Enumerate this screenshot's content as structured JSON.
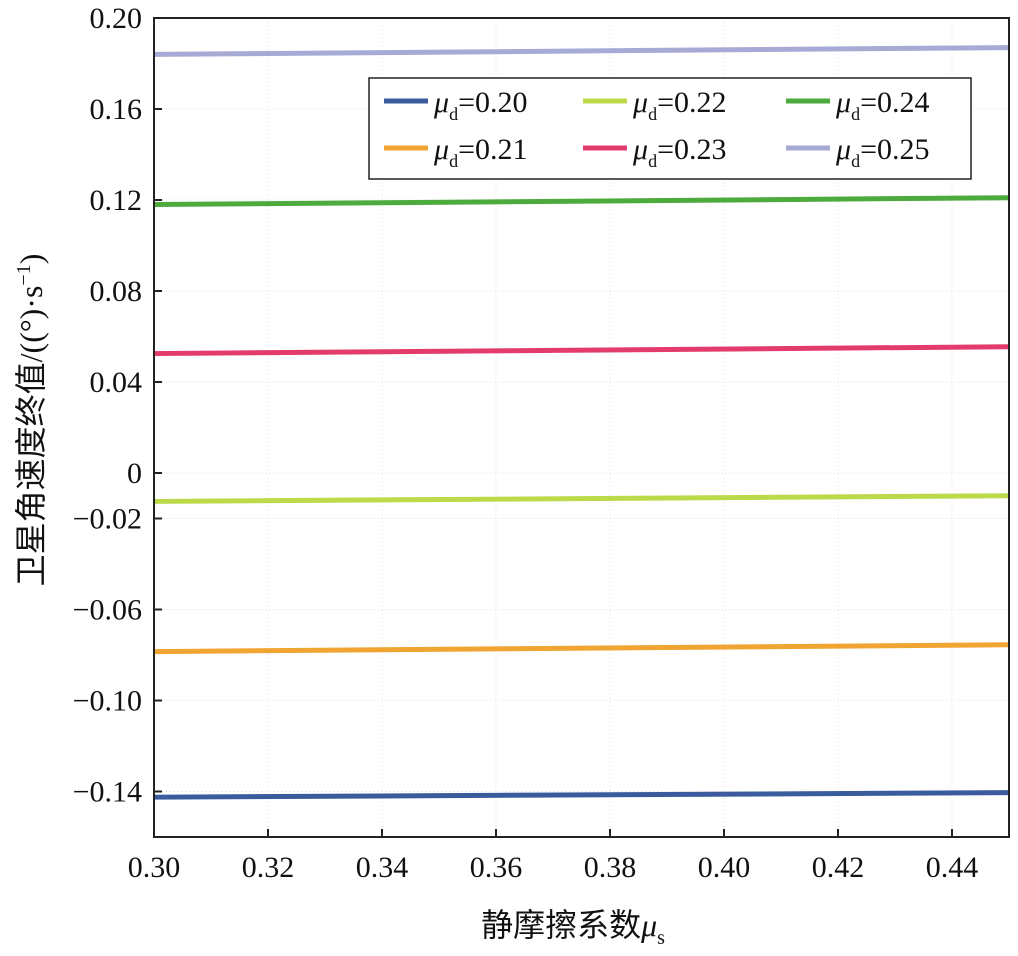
{
  "chart_data": {
    "type": "line",
    "xlabel": "静摩擦系数",
    "xlabel_symbol": "μ",
    "xlabel_sub": "s",
    "ylabel": "卫星角速度终值/((°)·s",
    "ylabel_sup": "−1",
    "ylabel_close": ")",
    "xlim": [
      0.3,
      0.45
    ],
    "ylim": [
      -0.16,
      0.2
    ],
    "xticks": [
      {
        "value": 0.3,
        "label": "0.30"
      },
      {
        "value": 0.32,
        "label": "0.32"
      },
      {
        "value": 0.34,
        "label": "0.34"
      },
      {
        "value": 0.36,
        "label": "0.36"
      },
      {
        "value": 0.38,
        "label": "0.38"
      },
      {
        "value": 0.4,
        "label": "0.40"
      },
      {
        "value": 0.42,
        "label": "0.42"
      },
      {
        "value": 0.44,
        "label": "0.44"
      }
    ],
    "yticks": [
      {
        "value": 0.2,
        "label": "0.20"
      },
      {
        "value": 0.16,
        "label": "0.16"
      },
      {
        "value": 0.12,
        "label": "0.12"
      },
      {
        "value": 0.08,
        "label": "0.08"
      },
      {
        "value": 0.04,
        "label": "0.04"
      },
      {
        "value": 0.0,
        "label": "0"
      },
      {
        "value": -0.02,
        "label": "−0.02"
      },
      {
        "value": -0.06,
        "label": "−0.06"
      },
      {
        "value": -0.1,
        "label": "−0.10"
      },
      {
        "value": -0.14,
        "label": "−0.14"
      }
    ],
    "legend_position": "top-right",
    "legend_symbol": "μ",
    "legend_sub": "d",
    "series": [
      {
        "name": "=0.20",
        "color": "#3a5b9c",
        "x": [
          0.3,
          0.45
        ],
        "y": [
          -0.1425,
          -0.1405
        ]
      },
      {
        "name": "=0.21",
        "color": "#f0a431",
        "x": [
          0.3,
          0.45
        ],
        "y": [
          -0.0785,
          -0.0755
        ]
      },
      {
        "name": "=0.22",
        "color": "#bcd94a",
        "x": [
          0.3,
          0.45
        ],
        "y": [
          -0.0125,
          -0.01
        ]
      },
      {
        "name": "=0.23",
        "color": "#e33b6c",
        "x": [
          0.3,
          0.45
        ],
        "y": [
          0.0525,
          0.0555
        ]
      },
      {
        "name": "=0.24",
        "color": "#4daa3d",
        "x": [
          0.3,
          0.45
        ],
        "y": [
          0.118,
          0.121
        ]
      },
      {
        "name": "=0.25",
        "color": "#a6aad4",
        "x": [
          0.3,
          0.45
        ],
        "y": [
          0.184,
          0.187
        ]
      }
    ]
  }
}
